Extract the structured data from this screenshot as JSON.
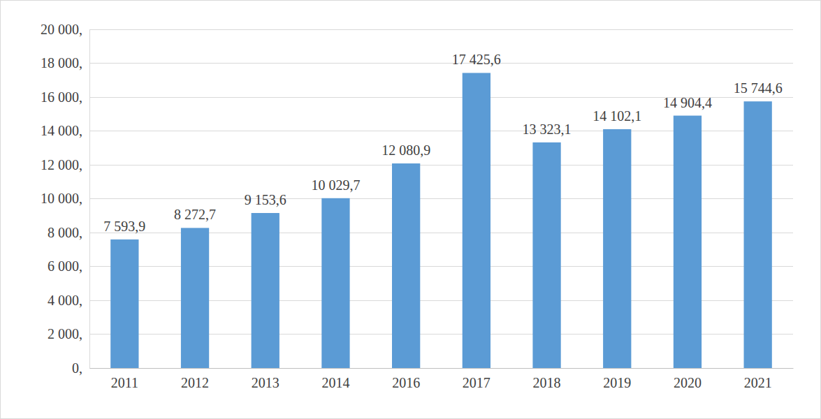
{
  "chart_data": {
    "type": "bar",
    "categories": [
      "2011",
      "2012",
      "2013",
      "2014",
      "2016",
      "2017",
      "2018",
      "2019",
      "2020",
      "2021"
    ],
    "values": [
      7593.9,
      8272.7,
      9153.6,
      10029.7,
      12080.9,
      17425.6,
      13323.1,
      14102.1,
      14904.4,
      15744.6
    ],
    "value_labels": [
      "7 593,9",
      "8 272,7",
      "9 153,6",
      "10 029,7",
      "12 080,9",
      "17 425,6",
      "13 323,1",
      "14 102,1",
      "14 904,4",
      "15 744,6"
    ],
    "data_labels": true,
    "color": "#5b9bd5",
    "ylim": [
      0,
      20000
    ],
    "yticks": [
      {
        "value": 0,
        "label": "0,"
      },
      {
        "value": 2000,
        "label": "2 000,"
      },
      {
        "value": 4000,
        "label": "4 000,"
      },
      {
        "value": 6000,
        "label": "6 000,"
      },
      {
        "value": 8000,
        "label": "8 000,"
      },
      {
        "value": 10000,
        "label": "10 000,"
      },
      {
        "value": 12000,
        "label": "12 000,"
      },
      {
        "value": 14000,
        "label": "14 000,"
      },
      {
        "value": 16000,
        "label": "16 000,"
      },
      {
        "value": 18000,
        "label": "18 000,"
      },
      {
        "value": 20000,
        "label": "20 000,"
      }
    ],
    "grid": true
  }
}
